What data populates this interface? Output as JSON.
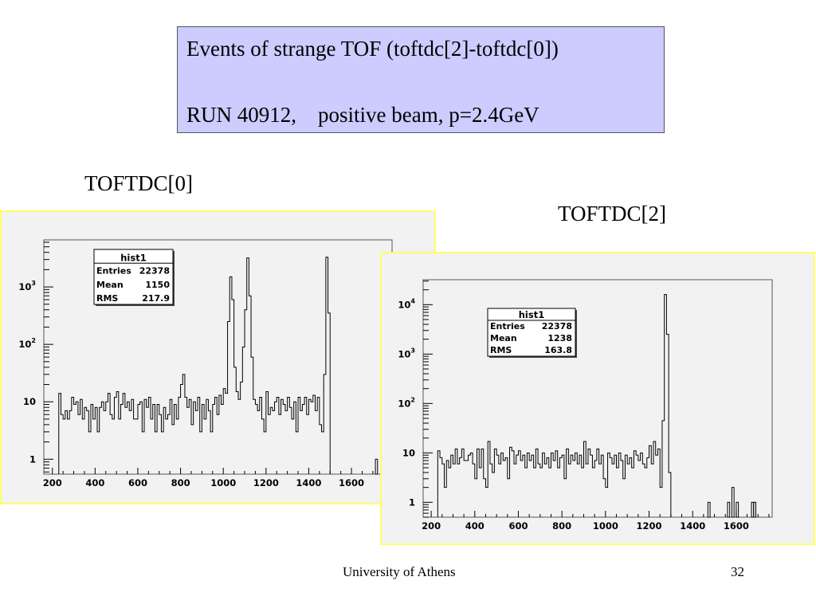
{
  "title": {
    "line1": "Events of strange TOF (toftdc[2]-toftdc[0])",
    "line2": "RUN 40912,    positive beam, p=2.4GeV"
  },
  "captions": {
    "left": "TOFTDC[0]",
    "right": "TOFTDC[2]"
  },
  "footer": {
    "institution": "University of Athens",
    "page": "32"
  },
  "colors": {
    "title_box": "#ccccff",
    "panel_border": "#ffff66",
    "panel_bg": "#f2f2f2",
    "line": "#000000"
  },
  "chart_data": [
    {
      "type": "bar",
      "name": "TOFTDC[0]",
      "histogram": true,
      "yscale": "log",
      "xlim": [
        160,
        1790
      ],
      "ylim": [
        0.55,
        6600
      ],
      "x_tick_labels": [
        "200",
        "400",
        "600",
        "800",
        "1000",
        "1200",
        "1400",
        "1600"
      ],
      "y_tick_labels": [
        "1",
        "10",
        "10^2",
        "10^3"
      ],
      "stats": {
        "title": "hist1",
        "rows": [
          [
            "Entries",
            "22378"
          ],
          [
            "Mean",
            "1150"
          ],
          [
            "RMS",
            "217.9"
          ]
        ]
      },
      "bin_start": 230,
      "bin_width": 10,
      "values": [
        14,
        6,
        5,
        7,
        5,
        7,
        12,
        9,
        10,
        6,
        11,
        5,
        8,
        7,
        3,
        9,
        5,
        8,
        3,
        8,
        10,
        7,
        10,
        14,
        6,
        5,
        12,
        15,
        5,
        9,
        14,
        8,
        10,
        7,
        11,
        5,
        5,
        9,
        10,
        3,
        11,
        8,
        12,
        5,
        9,
        3,
        9,
        6,
        3,
        8,
        5,
        6,
        11,
        4,
        9,
        5,
        12,
        20,
        30,
        12,
        8,
        11,
        4,
        10,
        7,
        12,
        3,
        9,
        5,
        11,
        7,
        3,
        9,
        12,
        6,
        13,
        9,
        17,
        14,
        250,
        1500,
        600,
        40,
        15,
        11,
        22,
        90,
        400,
        3200,
        700,
        60,
        11,
        9,
        7,
        12,
        5,
        3,
        15,
        6,
        8,
        7,
        10,
        12,
        6,
        11,
        9,
        7,
        12,
        8,
        5,
        10,
        3,
        12,
        7,
        9,
        12,
        6,
        11,
        10,
        13,
        7,
        12,
        4,
        3,
        30,
        3300,
        350
      ],
      "extra_bins": [
        [
          1712,
          1
        ]
      ]
    },
    {
      "type": "bar",
      "name": "TOFTDC[2]",
      "histogram": true,
      "yscale": "log",
      "xlim": [
        163,
        1765
      ],
      "ylim": [
        0.5,
        32000
      ],
      "x_tick_labels": [
        "200",
        "400",
        "600",
        "800",
        "1000",
        "1200",
        "1400",
        "1600"
      ],
      "y_tick_labels": [
        "1",
        "10",
        "10^2",
        "10^3",
        "10^4"
      ],
      "stats": {
        "title": "hist1",
        "rows": [
          [
            "Entries",
            "22378"
          ],
          [
            "Mean",
            "1238"
          ],
          [
            "RMS",
            "163.8"
          ]
        ]
      },
      "bin_start": 230,
      "bin_width": 10,
      "values": [
        11,
        8,
        6,
        2,
        7,
        5,
        9,
        6,
        12,
        6,
        8,
        12,
        7,
        7,
        9,
        10,
        6,
        3,
        12,
        5,
        12,
        3,
        2,
        17,
        6,
        4,
        12,
        9,
        6,
        10,
        7,
        8,
        3,
        13,
        11,
        6,
        9,
        11,
        7,
        9,
        5,
        10,
        7,
        9,
        5,
        12,
        6,
        5,
        10,
        6,
        8,
        5,
        10,
        7,
        11,
        5,
        8,
        9,
        3,
        12,
        6,
        9,
        7,
        10,
        6,
        9,
        5,
        17,
        6,
        12,
        9,
        5,
        7,
        12,
        6,
        9,
        3,
        2,
        10,
        8,
        6,
        9,
        5,
        10,
        7,
        3,
        9,
        6,
        8,
        5,
        11,
        9,
        7,
        10,
        6,
        5,
        8,
        14,
        6,
        17,
        9,
        12,
        2,
        45,
        16000,
        2500,
        4
      ],
      "extra_bins": [
        [
          1470,
          1
        ],
        [
          1560,
          1
        ],
        [
          1580,
          2
        ],
        [
          1600,
          1
        ],
        [
          1670,
          1
        ],
        [
          1680,
          1
        ]
      ]
    }
  ]
}
